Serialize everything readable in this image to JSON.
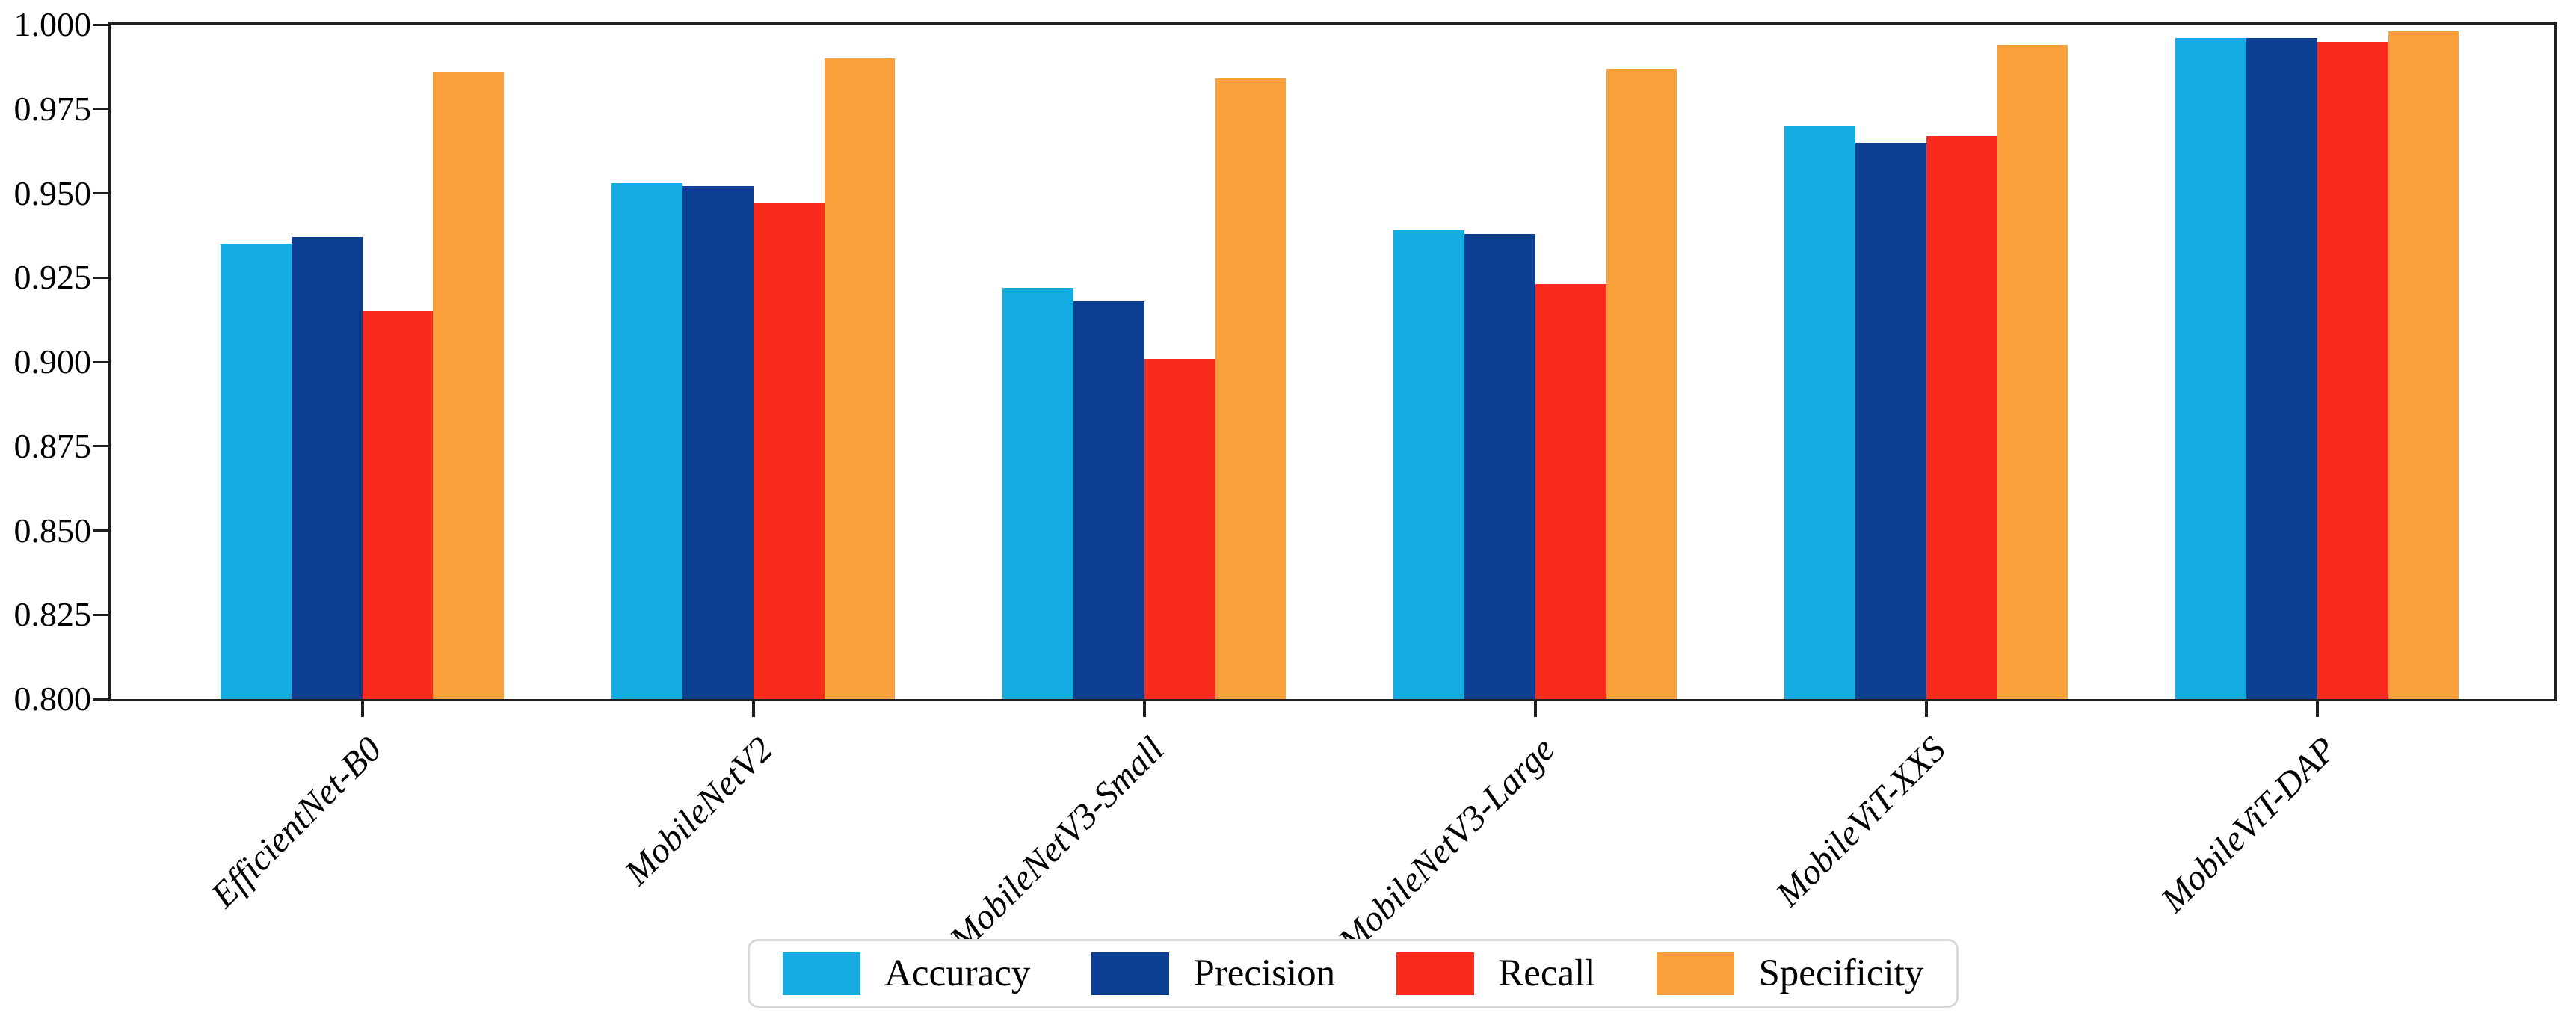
{
  "chart_data": {
    "type": "bar",
    "title": "",
    "xlabel": "",
    "ylabel": "",
    "categories": [
      "EfficientNet-B0",
      "MobileNetV2",
      "MobileNetV3-Small",
      "MobileNetV3-Large",
      "MobileViT-XXS",
      "MobileViT-DAP"
    ],
    "series": [
      {
        "name": "Accuracy",
        "color": "#14ACE3",
        "values": [
          0.935,
          0.953,
          0.922,
          0.939,
          0.97,
          0.996
        ]
      },
      {
        "name": "Precision",
        "color": "#0C3E92",
        "values": [
          0.937,
          0.952,
          0.918,
          0.938,
          0.965,
          0.996
        ]
      },
      {
        "name": "Recall",
        "color": "#F92B1D",
        "values": [
          0.915,
          0.947,
          0.901,
          0.923,
          0.967,
          0.995
        ]
      },
      {
        "name": "Specificity",
        "color": "#F9A03B",
        "values": [
          0.986,
          0.99,
          0.984,
          0.987,
          0.994,
          0.998
        ]
      }
    ],
    "ylim": [
      0.8,
      1.0
    ],
    "ytick_step": 0.025,
    "ytick_labels": [
      "1.000",
      "0.975",
      "0.950",
      "0.925",
      "0.900",
      "0.875",
      "0.850",
      "0.825",
      "0.800"
    ],
    "grid": false,
    "legend_position": "bottom-center",
    "legend_labels": [
      "Accuracy",
      "Precision",
      "Recall",
      "Specificity"
    ],
    "frame_color": "#1f1f1f",
    "legend_border_color": "#d9d9d9"
  }
}
